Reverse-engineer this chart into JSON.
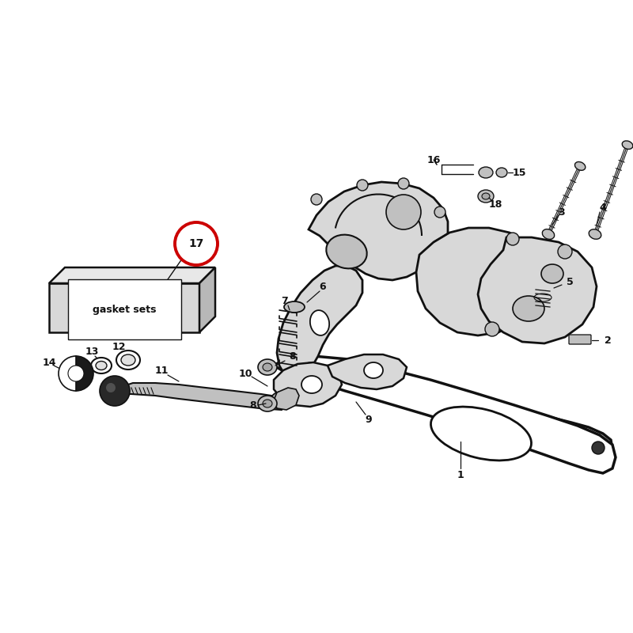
{
  "bg": "#ffffff",
  "lc": "#111111",
  "gray1": "#d8d8d8",
  "gray2": "#c0c0c0",
  "gray3": "#a8a8a8",
  "black": "#111111",
  "red": "#cc0000",
  "white": "#ffffff",
  "lw_heavy": 2.2,
  "lw_med": 1.5,
  "lw_thin": 1.0,
  "figsize": [
    8.0,
    8.0
  ],
  "dpi": 100
}
